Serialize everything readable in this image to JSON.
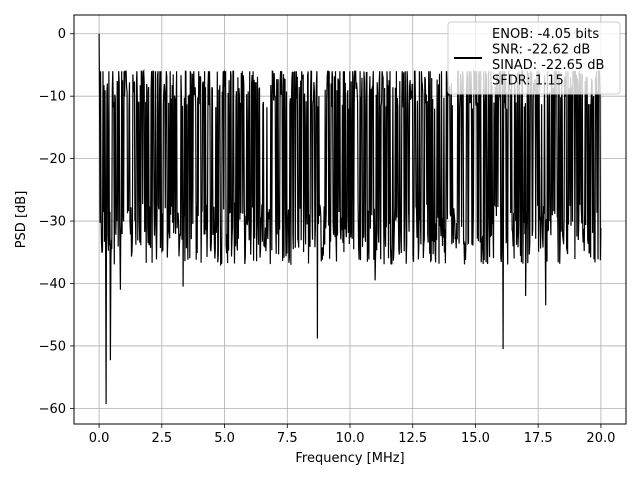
{
  "chart_data": {
    "type": "line",
    "xlabel": "Frequency [MHz]",
    "ylabel": "PSD [dB]",
    "xlim": [
      -1.0,
      21.0
    ],
    "ylim": [
      -62.5,
      3.0
    ],
    "x_ticks": [
      0.0,
      2.5,
      5.0,
      7.5,
      10.0,
      12.5,
      15.0,
      17.5,
      20.0
    ],
    "x_tick_labels": [
      "0.0",
      "2.5",
      "5.0",
      "7.5",
      "10.0",
      "12.5",
      "15.0",
      "17.5",
      "20.0"
    ],
    "y_ticks": [
      0,
      -10,
      -20,
      -30,
      -40,
      -50,
      -60
    ],
    "y_tick_labels": [
      "0",
      "−10",
      "−20",
      "−30",
      "−40",
      "−50",
      "−60"
    ],
    "grid": true,
    "legend_position": "top-right",
    "legend_lines": [
      "ENOB: -4.05 bits",
      "SNR: -22.62 dB",
      "SINAD: -22.65 dB",
      "SFDR: 1.15"
    ],
    "series": [
      {
        "color": "#000000",
        "x_range": [
          0.0,
          20.0
        ],
        "num_points": 1024,
        "mean_db": -19.0,
        "envelope_max_db": -8.0,
        "envelope_min_db": -33.0,
        "peak": {
          "x": 0.0,
          "y": 0.0
        },
        "dips": [
          {
            "x": 0.28,
            "y": -59.3
          },
          {
            "x": 0.45,
            "y": -52.3
          },
          {
            "x": 0.85,
            "y": -41.0
          },
          {
            "x": 3.35,
            "y": -40.5
          },
          {
            "x": 8.7,
            "y": -48.8
          },
          {
            "x": 16.1,
            "y": -50.5
          },
          {
            "x": 17.8,
            "y": -43.5
          },
          {
            "x": 17.0,
            "y": -42.0
          },
          {
            "x": 11.0,
            "y": -39.5
          }
        ]
      }
    ]
  },
  "colors": {
    "line": "#000000",
    "grid": "#b0b0b0",
    "axes": "#000000",
    "background": "#ffffff"
  }
}
